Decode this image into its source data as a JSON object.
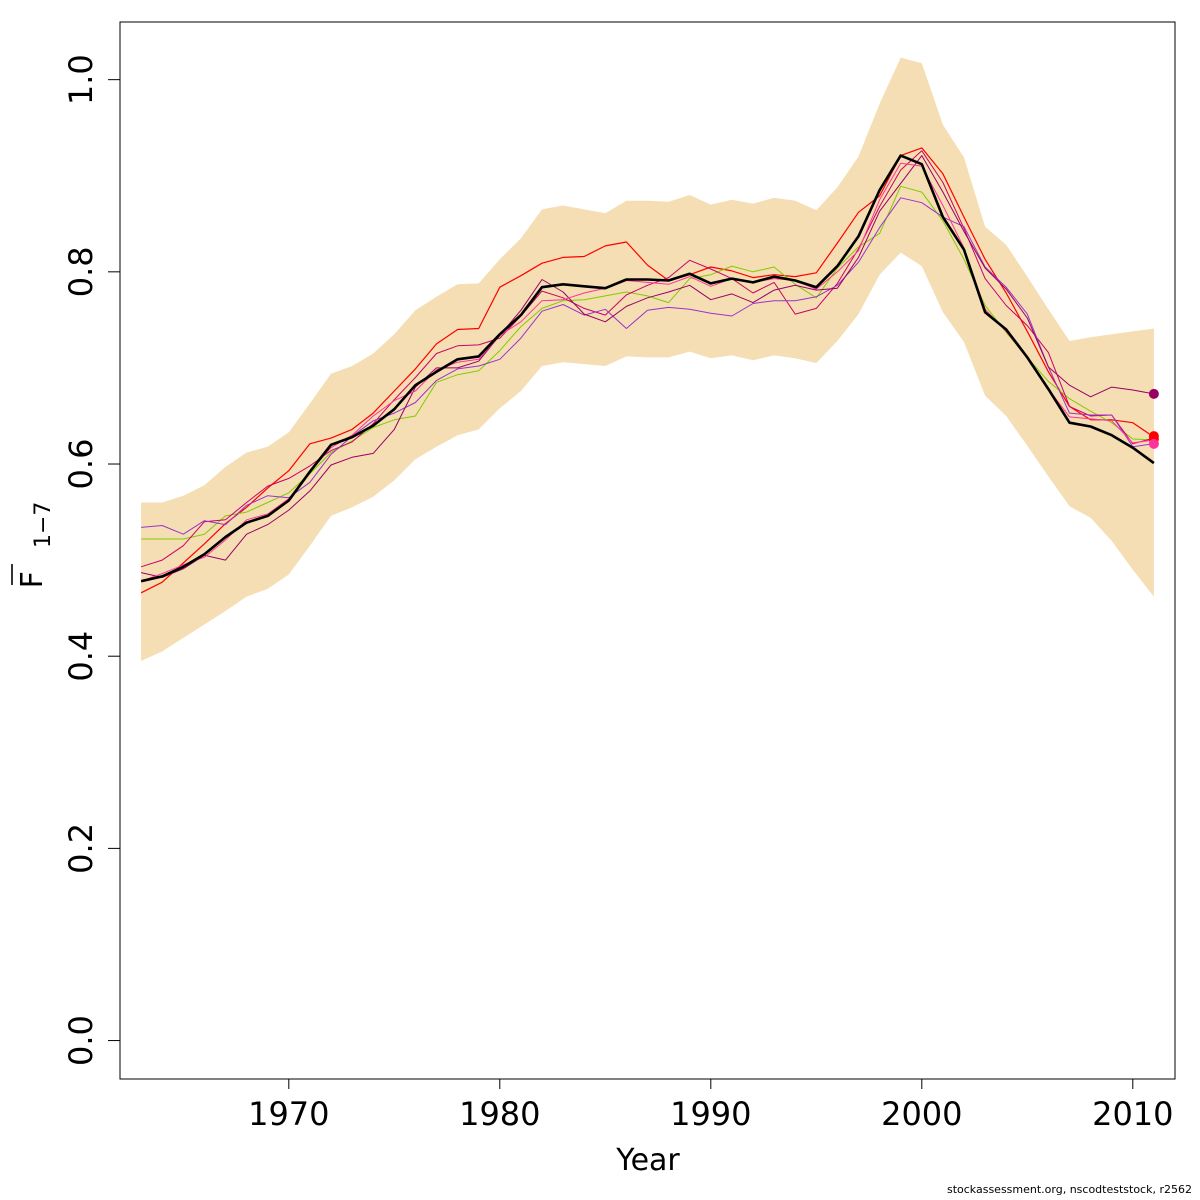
{
  "chart_data": {
    "type": "line",
    "xlabel": "Year",
    "ylabel_main": "F",
    "ylabel_sub": "1−7",
    "xlim": [
      1962,
      2012
    ],
    "ylim": [
      -0.04,
      1.06
    ],
    "x_ticks": [
      1970,
      1980,
      1990,
      2000,
      2010
    ],
    "y_ticks": [
      0.0,
      0.2,
      0.4,
      0.6,
      0.8,
      1.0
    ],
    "y_tick_labels": [
      "0.0",
      "0.2",
      "0.4",
      "0.6",
      "0.8",
      "1.0"
    ],
    "grid": false,
    "x": [
      1963,
      1964,
      1965,
      1966,
      1967,
      1968,
      1969,
      1970,
      1971,
      1972,
      1973,
      1974,
      1975,
      1976,
      1977,
      1978,
      1979,
      1980,
      1981,
      1982,
      1983,
      1984,
      1985,
      1986,
      1987,
      1988,
      1989,
      1990,
      1991,
      1992,
      1993,
      1994,
      1995,
      1996,
      1997,
      1998,
      1999,
      2000,
      2001,
      2002,
      2003,
      2004,
      2005,
      2006,
      2007,
      2008,
      2009,
      2010,
      2011
    ],
    "band": {
      "color": "#F5DEB3",
      "upper": [
        0.56,
        0.56,
        0.567,
        0.578,
        0.597,
        0.612,
        0.618,
        0.633,
        0.663,
        0.694,
        0.702,
        0.715,
        0.735,
        0.76,
        0.774,
        0.787,
        0.788,
        0.813,
        0.835,
        0.865,
        0.869,
        0.865,
        0.861,
        0.874,
        0.874,
        0.873,
        0.88,
        0.87,
        0.875,
        0.871,
        0.877,
        0.874,
        0.864,
        0.888,
        0.92,
        0.975,
        1.023,
        1.017,
        0.953,
        0.919,
        0.847,
        0.828,
        0.795,
        0.761,
        0.728,
        0.732,
        0.735,
        0.738,
        0.741
      ],
      "lower": [
        0.395,
        0.405,
        0.419,
        0.433,
        0.447,
        0.462,
        0.47,
        0.485,
        0.515,
        0.546,
        0.555,
        0.566,
        0.583,
        0.605,
        0.618,
        0.63,
        0.636,
        0.658,
        0.676,
        0.702,
        0.706,
        0.704,
        0.702,
        0.712,
        0.711,
        0.711,
        0.717,
        0.71,
        0.713,
        0.708,
        0.713,
        0.71,
        0.705,
        0.728,
        0.756,
        0.797,
        0.82,
        0.806,
        0.758,
        0.727,
        0.671,
        0.65,
        0.619,
        0.587,
        0.556,
        0.544,
        0.52,
        0.49,
        0.462
      ]
    },
    "series": [
      {
        "color": "#000000",
        "width": 2.6,
        "values": [
          0.478,
          0.483,
          0.493,
          0.506,
          0.524,
          0.539,
          0.546,
          0.562,
          0.592,
          0.62,
          0.628,
          0.64,
          0.657,
          0.682,
          0.696,
          0.709,
          0.712,
          0.735,
          0.755,
          0.784,
          0.787,
          0.785,
          0.783,
          0.792,
          0.792,
          0.791,
          0.798,
          0.788,
          0.793,
          0.789,
          0.795,
          0.791,
          0.784,
          0.806,
          0.837,
          0.885,
          0.921,
          0.912,
          0.857,
          0.823,
          0.758,
          0.74,
          0.711,
          0.678,
          0.643,
          0.639,
          0.63,
          0.617,
          0.601
        ]
      },
      {
        "color": "#FF0000",
        "width": 1.2,
        "values": [
          0.466,
          0.477,
          0.497,
          0.517,
          0.538,
          0.555,
          0.575,
          0.593,
          0.621,
          0.627,
          0.636,
          0.653,
          0.676,
          0.699,
          0.725,
          0.74,
          0.741,
          0.784,
          0.796,
          0.809,
          0.815,
          0.816,
          0.827,
          0.831,
          0.807,
          0.791,
          0.797,
          0.805,
          0.801,
          0.794,
          0.797,
          0.795,
          0.799,
          0.83,
          0.862,
          0.879,
          0.921,
          0.929,
          0.902,
          0.857,
          0.813,
          0.778,
          0.738,
          0.696,
          0.66,
          0.646,
          0.646,
          0.643,
          0.628
        ]
      },
      {
        "color": "#7FCC00",
        "width": 1.0,
        "values": [
          0.522,
          0.522,
          0.522,
          0.527,
          0.546,
          0.55,
          0.56,
          0.57,
          0.59,
          0.612,
          0.624,
          0.638,
          0.646,
          0.65,
          0.685,
          0.693,
          0.697,
          0.718,
          0.743,
          0.762,
          0.77,
          0.771,
          0.775,
          0.779,
          0.775,
          0.768,
          0.793,
          0.797,
          0.806,
          0.8,
          0.805,
          0.787,
          0.773,
          0.804,
          0.826,
          0.84,
          0.889,
          0.883,
          0.853,
          0.813,
          0.765,
          0.737,
          0.711,
          0.686,
          0.668,
          0.655,
          0.643,
          0.626,
          0.625
        ]
      },
      {
        "color": "#CC0066",
        "width": 1.0,
        "values": [
          0.493,
          0.5,
          0.515,
          0.54,
          0.542,
          0.56,
          0.577,
          0.585,
          0.598,
          0.614,
          0.623,
          0.642,
          0.667,
          0.69,
          0.715,
          0.723,
          0.724,
          0.731,
          0.754,
          0.78,
          0.773,
          0.762,
          0.755,
          0.776,
          0.786,
          0.794,
          0.812,
          0.803,
          0.793,
          0.778,
          0.789,
          0.756,
          0.762,
          0.788,
          0.824,
          0.868,
          0.906,
          0.926,
          0.893,
          0.845,
          0.793,
          0.765,
          0.744,
          0.716,
          0.66,
          0.65,
          0.651,
          0.621,
          0.627
        ]
      },
      {
        "color": "#9933CC",
        "width": 1.0,
        "values": [
          0.534,
          0.536,
          0.527,
          0.541,
          0.537,
          0.557,
          0.567,
          0.565,
          0.581,
          0.61,
          0.629,
          0.645,
          0.653,
          0.664,
          0.687,
          0.699,
          0.702,
          0.709,
          0.731,
          0.759,
          0.766,
          0.755,
          0.761,
          0.741,
          0.76,
          0.763,
          0.761,
          0.757,
          0.754,
          0.767,
          0.77,
          0.77,
          0.774,
          0.786,
          0.81,
          0.846,
          0.877,
          0.872,
          0.857,
          0.847,
          0.805,
          0.784,
          0.756,
          0.701,
          0.653,
          0.651,
          0.651,
          0.618,
          0.621
        ]
      },
      {
        "color": "#990066",
        "width": 1.0,
        "values": [
          0.487,
          0.482,
          0.491,
          0.505,
          0.5,
          0.527,
          0.537,
          0.552,
          0.572,
          0.599,
          0.607,
          0.611,
          0.636,
          0.68,
          0.7,
          0.7,
          0.707,
          0.734,
          0.76,
          0.792,
          0.779,
          0.756,
          0.748,
          0.764,
          0.773,
          0.779,
          0.786,
          0.771,
          0.777,
          0.768,
          0.781,
          0.786,
          0.781,
          0.783,
          0.815,
          0.863,
          0.892,
          0.921,
          0.883,
          0.842,
          0.804,
          0.782,
          0.752,
          0.701,
          0.682,
          0.67,
          0.68,
          0.677,
          0.673
        ]
      },
      {
        "color": "#FF3399",
        "width": 1.0,
        "values": [
          0.478,
          0.486,
          0.495,
          0.503,
          0.521,
          0.542,
          0.548,
          0.564,
          0.592,
          0.617,
          0.63,
          0.65,
          0.666,
          0.676,
          0.698,
          0.706,
          0.709,
          0.734,
          0.748,
          0.77,
          0.771,
          0.778,
          0.783,
          0.791,
          0.789,
          0.787,
          0.795,
          0.785,
          0.793,
          0.789,
          0.793,
          0.791,
          0.782,
          0.8,
          0.822,
          0.875,
          0.913,
          0.91,
          0.869,
          0.825,
          0.761,
          0.738,
          0.71,
          0.678,
          0.649,
          0.647,
          0.645,
          0.622,
          0.625
        ]
      }
    ],
    "endpoints": [
      {
        "x": 2011,
        "y": 0.673,
        "color": "#990066"
      },
      {
        "x": 2011,
        "y": 0.629,
        "color": "#FF0000"
      },
      {
        "x": 2011,
        "y": 0.626,
        "color": "#FF0000"
      },
      {
        "x": 2011,
        "y": 0.621,
        "color": "#FF3399"
      }
    ]
  },
  "footer": {
    "credit": "stockassessment.org, nscodteststock, r2562"
  }
}
